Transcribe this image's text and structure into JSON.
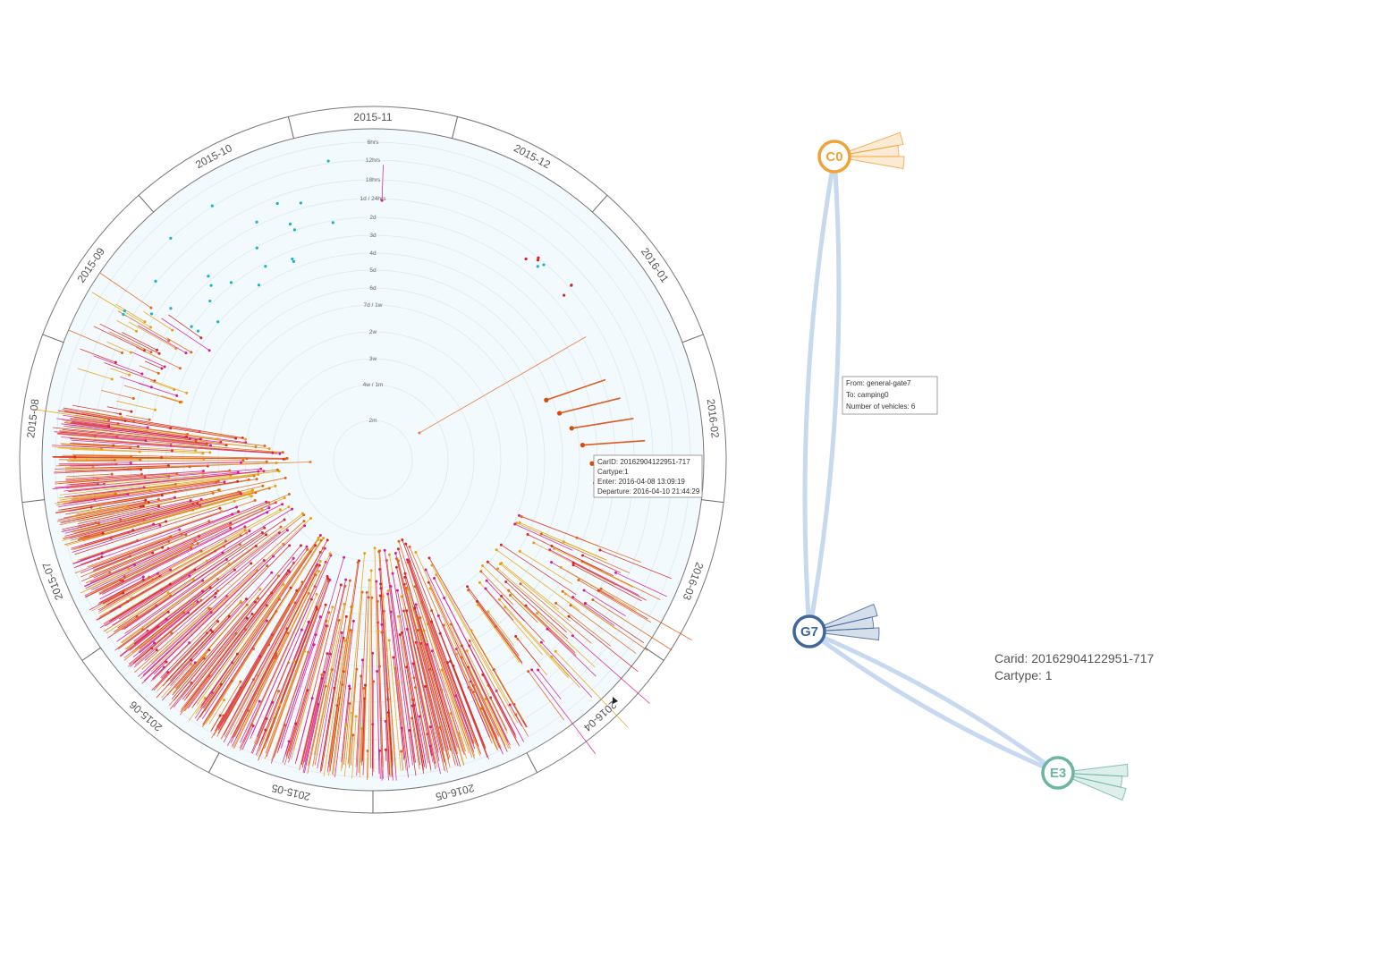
{
  "chart_data": [
    {
      "type": "radial-timeline",
      "months": [
        "2015-05",
        "2015-06",
        "2015-07",
        "2015-08",
        "2015-09",
        "2015-10",
        "2015-11",
        "2015-12",
        "2016-01",
        "2016-02",
        "2016-03",
        "2016-04",
        "2016-05"
      ],
      "duration_rings": [
        "6hrs",
        "12hrs",
        "18hrs",
        "1d / 24hrs",
        "2d",
        "3d",
        "4d",
        "5d",
        "6d",
        "7d / 1w",
        "2w",
        "3w",
        "4w / 1m",
        "2m"
      ],
      "series_colors": [
        "#d62728",
        "#e8a20c",
        "#e36414",
        "#d81b9b",
        "#1ab3c8",
        "#ff7f0e"
      ],
      "tooltip": {
        "lines": [
          "CarID: 20162904122951-717",
          "Cartype:1",
          "Enter: 2016-04-08 13:09:19",
          "Departure: 2016-04-10 21:44:29"
        ]
      }
    },
    {
      "type": "network",
      "nodes": [
        {
          "id": "C0",
          "color": "#f0a23a"
        },
        {
          "id": "G7",
          "color": "#40679c"
        },
        {
          "id": "E3",
          "color": "#6bb5a5"
        }
      ],
      "edges": [
        {
          "from": "G7",
          "to": "C0"
        },
        {
          "from": "G7",
          "to": "E3"
        }
      ],
      "edge_tooltip": {
        "lines": [
          "From: general-gate7",
          "To: camping0",
          "Number of vehicles: 6"
        ]
      }
    }
  ],
  "car_info": {
    "carid": "Carid: 20162904122951-717",
    "cartype": "Cartype: 1"
  }
}
